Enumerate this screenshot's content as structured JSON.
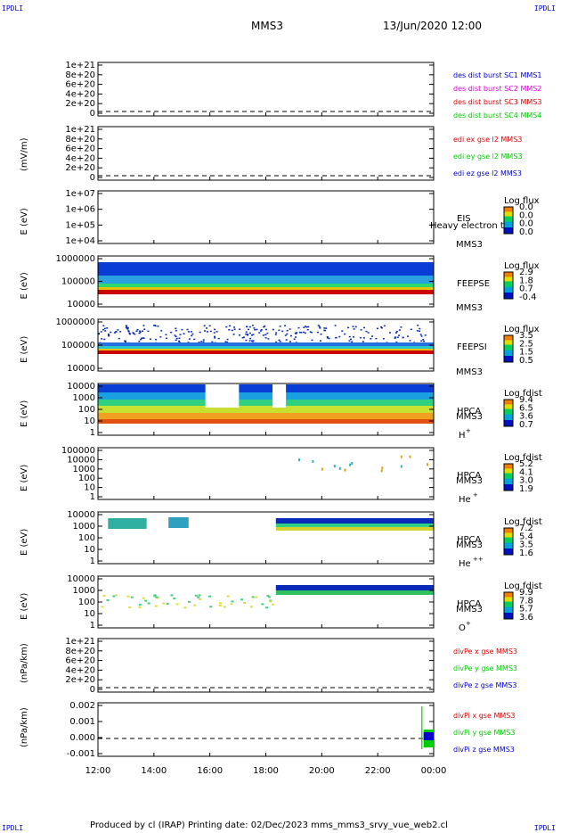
{
  "corners": {
    "tl": "IPDLI",
    "tr": "IPDLI",
    "bl": "IPDLI",
    "br": "IPDLI"
  },
  "header": {
    "title": "MMS3",
    "datetime": "13/Jun/2020 12:00"
  },
  "footer": {
    "text": "Produced by cl (IRAP)   Printing date: 02/Dec/2023   mms_mms3_srvy_vue_web2.cl"
  },
  "colors": {
    "red": "#dd0000",
    "green": "#00cc00",
    "blue": "#0000cc",
    "magenta": "#dd00dd"
  },
  "chart_data": {
    "type": "line",
    "title": "MMS3",
    "x_ticks": [
      "12:00",
      "14:00",
      "16:00",
      "18:00",
      "20:00",
      "22:00",
      "00:00"
    ],
    "panels": [
      {
        "id": "dist",
        "ylabel": "",
        "yticks": [
          "1e+21",
          "8e+20",
          "6e+20",
          "4e+20",
          "2e+20",
          "0"
        ],
        "legend": [
          {
            "text": "des dist burst SC1 MMS1",
            "color": "#0000cc"
          },
          {
            "text": "des dist burst SC2 MMS2",
            "color": "#dd00dd"
          },
          {
            "text": "des dist burst SC3 MMS3",
            "color": "#dd0000"
          },
          {
            "text": "des dist burst SC4 MMS4",
            "color": "#00cc00"
          }
        ]
      },
      {
        "id": "edi",
        "ylabel": "(mV/m)",
        "yticks": [
          "1e+21",
          "8e+20",
          "6e+20",
          "4e+20",
          "2e+20",
          "0"
        ],
        "legend": [
          {
            "text": "edi ex gse l2 MMS3",
            "color": "#dd0000"
          },
          {
            "text": "edi ey gse l2 MMS3",
            "color": "#00cc00"
          },
          {
            "text": "edi ez gse l2 MMS3",
            "color": "#0000cc"
          }
        ]
      },
      {
        "id": "eis",
        "ylabel": "E (eV)",
        "yticks": [
          "1e+07",
          "1e+06",
          "1e+05",
          "1e+04"
        ],
        "labels": [
          "EIS",
          "MMS3"
        ],
        "extra": "Heavy electron tof",
        "cbar_title": "Log flux",
        "cbar": [
          "0.0",
          "0.0",
          "0.0",
          "0.0"
        ]
      },
      {
        "id": "feepse",
        "ylabel": "E (eV)",
        "yticks": [
          "1000000",
          "100000",
          "10000"
        ],
        "labels": [
          "FEEPSE",
          "MMS3"
        ],
        "cbar_title": "Log flux",
        "cbar": [
          "2.9",
          "1.8",
          "0.7",
          "-0.4"
        ]
      },
      {
        "id": "feepsi",
        "ylabel": "E (eV)",
        "yticks": [
          "1000000",
          "100000",
          "10000"
        ],
        "labels": [
          "FEEPSI",
          "MMS3"
        ],
        "cbar_title": "Log flux",
        "cbar": [
          "3.5",
          "2.5",
          "1.5",
          "0.5"
        ]
      },
      {
        "id": "hpca_h",
        "ylabel": "E (eV)",
        "yticks": [
          "10000",
          "1000",
          "100",
          "10",
          "1"
        ],
        "labels": [
          "HPCA",
          "MMS3"
        ],
        "ion": "H",
        "ion_sup": "+",
        "cbar_title": "Log fdist",
        "cbar": [
          "9.4",
          "6.5",
          "3.6",
          "0.7"
        ]
      },
      {
        "id": "hpca_he",
        "ylabel": "E (eV)",
        "yticks": [
          "100000",
          "10000",
          "1000",
          "100",
          "10",
          "1"
        ],
        "labels": [
          "HPCA",
          "MMS3"
        ],
        "ion": "He",
        "ion_sup": "+",
        "cbar_title": "Log fdist",
        "cbar": [
          "5.2",
          "4.1",
          "3.0",
          "1.9"
        ]
      },
      {
        "id": "hpca_he2",
        "ylabel": "E (eV)",
        "yticks": [
          "10000",
          "1000",
          "100",
          "10",
          "1"
        ],
        "labels": [
          "HPCA",
          "MMS3"
        ],
        "ion": "He",
        "ion_sup": "++",
        "cbar_title": "Log fdist",
        "cbar": [
          "7.2",
          "5.4",
          "3.5",
          "1.6"
        ]
      },
      {
        "id": "hpca_o",
        "ylabel": "E (eV)",
        "yticks": [
          "10000",
          "1000",
          "100",
          "10",
          "1"
        ],
        "labels": [
          "HPCA",
          "MMS3"
        ],
        "ion": "O",
        "ion_sup": "+",
        "cbar_title": "Log fdist",
        "cbar": [
          "9.9",
          "7.8",
          "5.7",
          "3.6"
        ]
      },
      {
        "id": "divpe",
        "ylabel": "(nPa/km)",
        "yticks": [
          "1e+21",
          "8e+20",
          "6e+20",
          "4e+20",
          "2e+20",
          "0"
        ],
        "legend": [
          {
            "text": "divPe x gse MMS3",
            "color": "#dd0000"
          },
          {
            "text": "divPe y gse MMS3",
            "color": "#00cc00"
          },
          {
            "text": "divPe z gse MMS3",
            "color": "#0000cc"
          }
        ]
      },
      {
        "id": "divpi",
        "ylabel": "(nPa/km)",
        "yticks": [
          "0.002",
          "0.001",
          "0.000",
          "-0.001"
        ],
        "legend": [
          {
            "text": "divPi x gse MMS3",
            "color": "#dd0000"
          },
          {
            "text": "divPi y gse MMS3",
            "color": "#00cc00"
          },
          {
            "text": "divPi z gse MMS3",
            "color": "#0000cc"
          }
        ]
      }
    ]
  }
}
